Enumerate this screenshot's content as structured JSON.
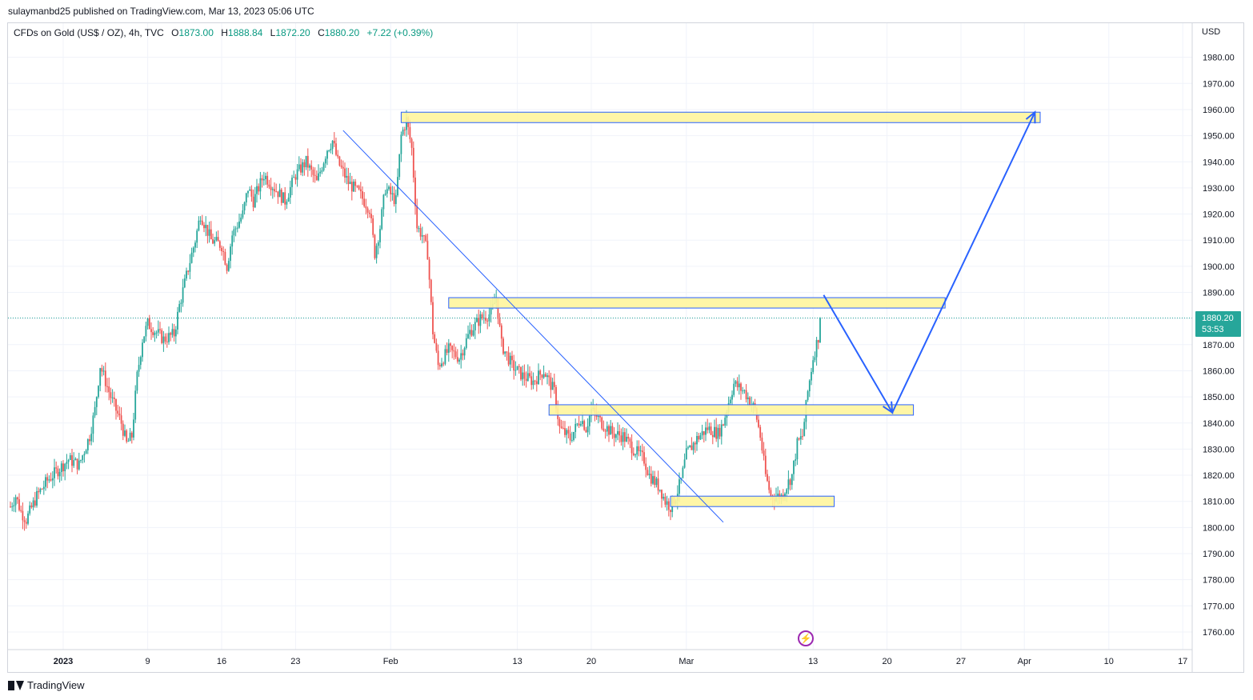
{
  "publisher": "sulaymanbd25 published on TradingView.com, Mar 13, 2023 05:06 UTC",
  "legend": {
    "symbol": "CFDs on Gold (US$ / OZ), 4h, TVC",
    "o_label": "O",
    "o_value": "1873.00",
    "h_label": "H",
    "h_value": "1888.84",
    "l_label": "L",
    "l_value": "1872.20",
    "c_label": "C",
    "c_value": "1880.20",
    "change": "+7.22 (+0.39%)"
  },
  "currency": "USD",
  "last_price": {
    "price": "1880.20",
    "countdown": "53:53",
    "color": "#26a69a"
  },
  "footer_brand": "TradingView",
  "colors": {
    "up": "#26a69a",
    "down": "#ef5350",
    "zone_fill": "#fff59d",
    "zone_border": "#2962ff",
    "arrow": "#2962ff",
    "trendline": "#2962ff"
  },
  "chart_data": {
    "type": "candlestick",
    "symbol": "CFDs on Gold (US$ / OZ)",
    "interval": "4h",
    "ylim": [
      1755,
      1990
    ],
    "y_ticks": [
      1760,
      1770,
      1780,
      1790,
      1800,
      1810,
      1820,
      1830,
      1840,
      1850,
      1860,
      1870,
      1880,
      1890,
      1900,
      1910,
      1920,
      1930,
      1940,
      1950,
      1960,
      1970,
      1980
    ],
    "x_ticks": [
      {
        "label": "2023",
        "day": 0
      },
      {
        "label": "9",
        "day": 8
      },
      {
        "label": "16",
        "day": 15
      },
      {
        "label": "23",
        "day": 22
      },
      {
        "label": "Feb",
        "day": 31
      },
      {
        "label": "13",
        "day": 43
      },
      {
        "label": "20",
        "day": 50
      },
      {
        "label": "Mar",
        "day": 59
      },
      {
        "label": "13",
        "day": 71
      },
      {
        "label": "20",
        "day": 78
      },
      {
        "label": "27",
        "day": 85
      },
      {
        "label": "Apr",
        "day": 91
      },
      {
        "label": "10",
        "day": 99
      },
      {
        "label": "17",
        "day": 106
      }
    ],
    "path": [
      [
        -5,
        1808
      ],
      [
        -4.5,
        1812
      ],
      [
        -4,
        1806
      ],
      [
        -3.5,
        1803
      ],
      [
        -2.5,
        1812
      ],
      [
        -1.5,
        1818
      ],
      [
        -0.5,
        1822
      ],
      [
        0.5,
        1826
      ],
      [
        1.5,
        1824
      ],
      [
        2.5,
        1835
      ],
      [
        3,
        1845
      ],
      [
        3.5,
        1862
      ],
      [
        4.5,
        1850
      ],
      [
        5.5,
        1840
      ],
      [
        6,
        1832
      ],
      [
        6.5,
        1835
      ],
      [
        7,
        1858
      ],
      [
        7.5,
        1872
      ],
      [
        8,
        1878
      ],
      [
        8.5,
        1876
      ],
      [
        9.5,
        1872
      ],
      [
        10.5,
        1874
      ],
      [
        11,
        1885
      ],
      [
        12,
        1902
      ],
      [
        12.5,
        1910
      ],
      [
        13,
        1920
      ],
      [
        14,
        1910
      ],
      [
        15,
        1908
      ],
      [
        15.5,
        1900
      ],
      [
        16,
        1912
      ],
      [
        17,
        1920
      ],
      [
        17.5,
        1930
      ],
      [
        18,
        1925
      ],
      [
        19,
        1935
      ],
      [
        20,
        1930
      ],
      [
        21,
        1925
      ],
      [
        22,
        1935
      ],
      [
        23,
        1940
      ],
      [
        24,
        1932
      ],
      [
        25,
        1945
      ],
      [
        25.5,
        1948
      ],
      [
        26,
        1940
      ],
      [
        27,
        1932
      ],
      [
        28,
        1928
      ],
      [
        29,
        1922
      ],
      [
        29.5,
        1905
      ],
      [
        30,
        1915
      ],
      [
        30.5,
        1930
      ],
      [
        31.5,
        1925
      ],
      [
        32,
        1950
      ],
      [
        32.5,
        1956
      ],
      [
        33,
        1945
      ],
      [
        33.5,
        1915
      ],
      [
        34,
        1912
      ],
      [
        34.5,
        1905
      ],
      [
        35,
        1875
      ],
      [
        35.5,
        1862
      ],
      [
        36.5,
        1868
      ],
      [
        37.5,
        1865
      ],
      [
        38.5,
        1875
      ],
      [
        39.5,
        1880
      ],
      [
        40.5,
        1882
      ],
      [
        41,
        1888
      ],
      [
        41.5,
        1870
      ],
      [
        42.5,
        1862
      ],
      [
        43.5,
        1858
      ],
      [
        44.5,
        1856
      ],
      [
        45.5,
        1860
      ],
      [
        46.5,
        1852
      ],
      [
        47,
        1838
      ],
      [
        48,
        1834
      ],
      [
        49,
        1842
      ],
      [
        49.5,
        1838
      ],
      [
        50,
        1845
      ],
      [
        51,
        1840
      ],
      [
        52,
        1836
      ],
      [
        53,
        1835
      ],
      [
        54,
        1830
      ],
      [
        55,
        1826
      ],
      [
        55.5,
        1820
      ],
      [
        56.5,
        1815
      ],
      [
        57,
        1810
      ],
      [
        57.5,
        1808
      ],
      [
        58,
        1812
      ],
      [
        58.5,
        1818
      ],
      [
        59,
        1828
      ],
      [
        60,
        1834
      ],
      [
        61,
        1838
      ],
      [
        62,
        1836
      ],
      [
        62.5,
        1840
      ],
      [
        63,
        1848
      ],
      [
        63.5,
        1855
      ],
      [
        64.5,
        1852
      ],
      [
        65.5,
        1845
      ],
      [
        66,
        1835
      ],
      [
        66.5,
        1820
      ],
      [
        67,
        1812
      ],
      [
        68,
        1812
      ],
      [
        69,
        1820
      ],
      [
        69.5,
        1832
      ],
      [
        70,
        1835
      ],
      [
        70.5,
        1852
      ],
      [
        71,
        1865
      ],
      [
        71.5,
        1873
      ],
      [
        71.7,
        1880.2
      ]
    ],
    "annotations": {
      "zones": [
        {
          "from_day": 32,
          "to_day": 92.5,
          "price": 1957
        },
        {
          "from_day": 36.5,
          "to_day": 83.5,
          "price": 1886
        },
        {
          "from_day": 46,
          "to_day": 80.5,
          "price": 1845
        },
        {
          "from_day": 57.5,
          "to_day": 73,
          "price": 1810
        }
      ],
      "trendline": [
        [
          26.5,
          1952
        ],
        [
          62.5,
          1802
        ]
      ],
      "projection": [
        [
          72,
          1889
        ],
        [
          78.5,
          1844
        ],
        [
          92,
          1959
        ]
      ]
    }
  }
}
